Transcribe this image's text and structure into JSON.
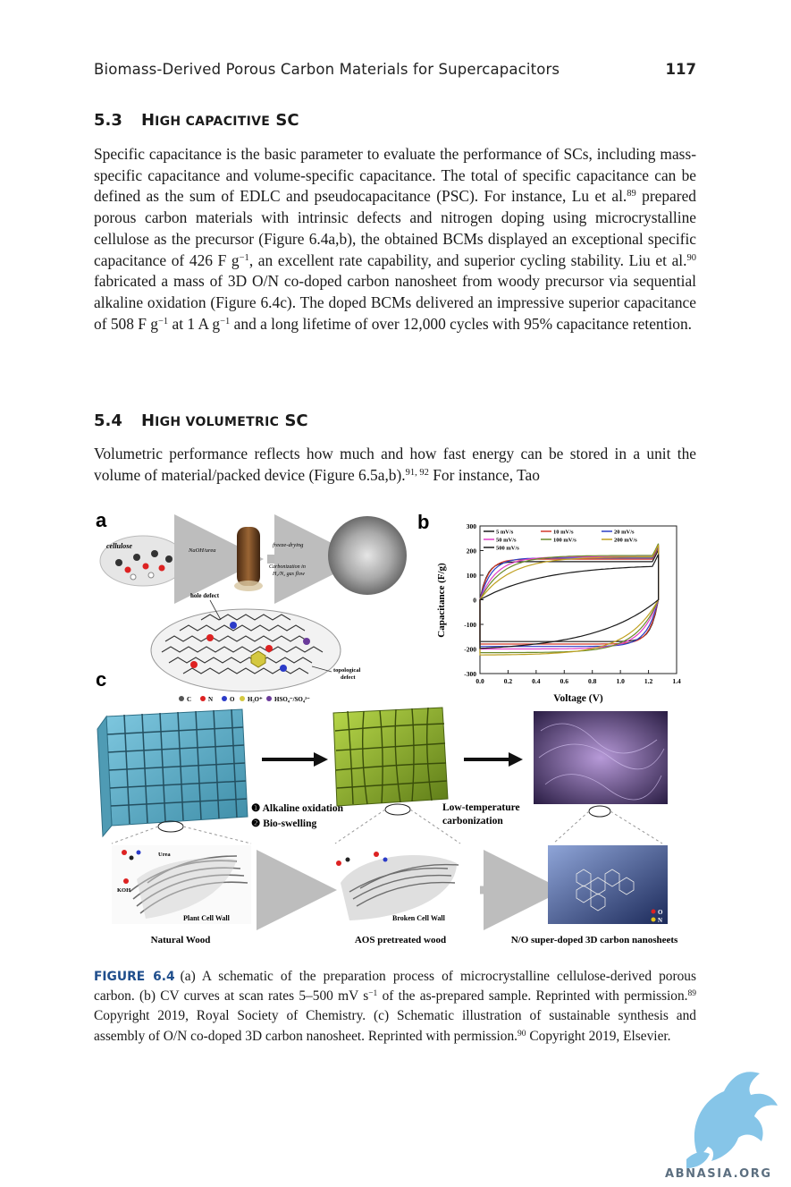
{
  "header": {
    "running_title": "Biomass-Derived Porous Carbon Materials for Supercapacitors",
    "page_number": "117"
  },
  "section_53": {
    "number": "5.3",
    "title_lead": "H",
    "title_rest": "igh capacitive",
    "title_end": "SC",
    "p_1": "Specific capacitance is the basic parameter to evaluate the performance of SCs, including mass-specific capacitance and volume-specific capacitance. The total of specific capacitance can be defined as the sum of EDLC and pseudocapacitance (PSC). For instance, Lu et al.",
    "ref_1": "89",
    "p_2": " prepared porous carbon materials with intrinsic defects and nitrogen doping using microcrystalline cellulose as the precursor (Figure 6.4a,b), the obtained BCMs displayed an exceptional specific capacitance of 426 F g",
    "exp_1": "−1",
    "p_3": ", an excellent rate capability, and superior cycling stability. Liu et al.",
    "ref_2": "90",
    "p_4": " fabricated a mass of 3D O/N co-doped carbon nanosheet from woody precursor via sequential alkaline oxidation (Figure 6.4c). The doped BCMs delivered an impressive superior capacitance of 508 F g",
    "exp_2": "−1",
    "p_5": " at 1 A g",
    "exp_3": "−1",
    "p_6": " and a long lifetime of over 12,000 cycles with 95% capacitance retention."
  },
  "section_54": {
    "number": "5.4",
    "title_lead": "H",
    "title_rest": "igh volumetric",
    "title_end": "SC",
    "p_1": "Volumetric performance reflects how much and how fast energy can be stored in a unit the volume of material/packed device (Figure 6.5a,b).",
    "ref_1": "91, 92",
    "p_2": " For instance, Tao"
  },
  "figure": {
    "panel_a": {
      "letter": "a",
      "cellulose": "cellulose",
      "step1": "NaOH/urea",
      "step2a": "freeze-drying",
      "step2b": "Carbonization in",
      "step2c": "H₂/N₂ gas flow",
      "hole_defect": "hole defect",
      "topo_1": "topological",
      "topo_2": "defect",
      "legend_c": "C",
      "legend_n": "N",
      "legend_o": "O",
      "legend_h3o": "H₃O⁺",
      "legend_hso4": "HSO₄⁻/SO₄²⁻"
    },
    "panel_c": {
      "letter": "c",
      "step_1": "Alkaline oxidation",
      "step_2": "Bio-swelling",
      "step_3a": "Low-temperature",
      "step_3b": "carbonization",
      "urea": "Urea",
      "koh": "KOH",
      "plant_wall": "Plant Cell Wall",
      "broken_wall": "Broken Cell Wall",
      "label_1": "Natural Wood",
      "label_2": "AOS pretreated wood",
      "label_3": "N/O super-doped 3D carbon nanosheets",
      "legend_o": "O",
      "legend_n": "N"
    }
  },
  "chart_data": {
    "type": "line",
    "panel_letter": "b",
    "xlabel": "Voltage (V)",
    "ylabel": "Capacitance (F/g)",
    "xlim": [
      0.0,
      1.4
    ],
    "ylim": [
      -300,
      300
    ],
    "xticks": [
      "0.0",
      "0.2",
      "0.4",
      "0.6",
      "0.8",
      "1.0",
      "1.2",
      "1.4"
    ],
    "yticks": [
      "300",
      "200",
      "100",
      "0",
      "-100",
      "-200",
      "-300"
    ],
    "grid": false,
    "legend_position": "top",
    "series": [
      {
        "name": "5 mV/s",
        "color": "#1a1a1a",
        "plateau_top": 155,
        "plateau_bottom": -170,
        "rise": 0.05
      },
      {
        "name": "10 mV/s",
        "color": "#d23a2a",
        "plateau_top": 165,
        "plateau_bottom": -180,
        "rise": 0.06
      },
      {
        "name": "20 mV/s",
        "color": "#2c3fc4",
        "plateau_top": 170,
        "plateau_bottom": -190,
        "rise": 0.08
      },
      {
        "name": "50 mV/s",
        "color": "#e040c8",
        "plateau_top": 175,
        "plateau_bottom": -200,
        "rise": 0.12
      },
      {
        "name": "100 mV/s",
        "color": "#6a8a2a",
        "plateau_top": 180,
        "plateau_bottom": -215,
        "rise": 0.16
      },
      {
        "name": "200 mV/s",
        "color": "#c0a020",
        "plateau_top": 175,
        "plateau_bottom": -225,
        "rise": 0.22
      },
      {
        "name": "500 mV/s",
        "color": "#1a1a1a",
        "plateau_top": 145,
        "plateau_bottom": -210,
        "rise": 0.45
      }
    ]
  },
  "caption": {
    "label": "FIGURE 6.4",
    "c_1": "(a) A schematic of the preparation process of microcrystalline cellulose-derived porous carbon. (b) CV curves at scan rates 5–500 mV s",
    "exp_1": "−1",
    "c_2": " of the as-prepared sample. Reprinted with permission.",
    "ref_1": "89",
    "c_3": " Copyright 2019, Royal Society of Chemistry. (c) Schematic illustration of sustainable synthesis and assembly of O/N co-doped 3D carbon nanosheet. Reprinted with permission.",
    "ref_2": "90",
    "c_4": " Copyright 2019, Elsevier."
  },
  "watermark": {
    "text": "ABNASIA.ORG",
    "color": "#6fb6e0"
  }
}
